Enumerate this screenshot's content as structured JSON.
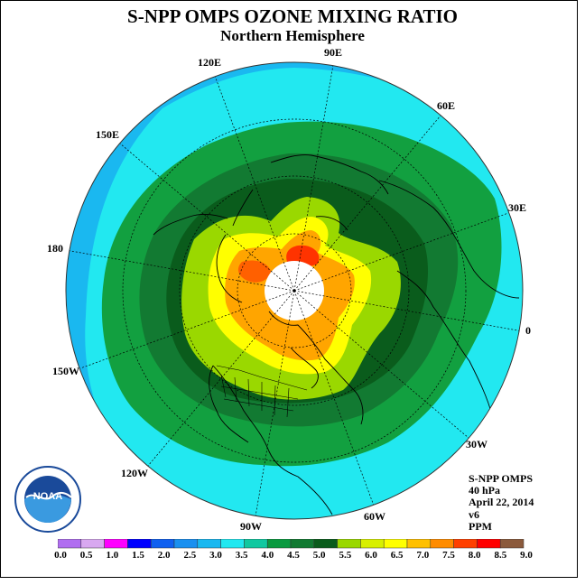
{
  "title": "S-NPP OMPS OZONE MIXING RATIO",
  "subtitle": "Northern Hemisphere",
  "longitude_labels": [
    "90E",
    "60E",
    "30E",
    "0",
    "30W",
    "60W",
    "90W",
    "120W",
    "150W",
    "180",
    "150E",
    "120E"
  ],
  "info": {
    "instrument": "S-NPP OMPS",
    "level": "40 hPa",
    "date": "April 22, 2014",
    "version": "v6",
    "units": "PPM"
  },
  "logo": {
    "text": "NOAA"
  },
  "colorbar": {
    "ticks": [
      "0.0",
      "0.5",
      "1.0",
      "1.5",
      "2.0",
      "2.5",
      "3.0",
      "3.5",
      "4.0",
      "4.5",
      "5.0",
      "5.5",
      "6.0",
      "6.5",
      "7.0",
      "7.5",
      "8.0",
      "8.5",
      "9.0"
    ],
    "colors": [
      "#b06ef0",
      "#d8a8f0",
      "#ff00ff",
      "#0000ff",
      "#1060f0",
      "#1a90f0",
      "#1ab8f0",
      "#22e8f0",
      "#11c8a0",
      "#0a9a40",
      "#127a32",
      "#0a5c1c",
      "#9ad800",
      "#d8f000",
      "#ffff00",
      "#ffc000",
      "#ff8c00",
      "#ff4000",
      "#ff0000",
      "#8b5a3c"
    ]
  },
  "colors": {
    "ring_outer": "#1ab8f0",
    "ring_cyan": "#22e8f0",
    "green_mid": "#127a32",
    "green_dark": "#0a5c1c",
    "lime": "#9ad800",
    "yellow": "#ffff00",
    "orange": "#ffa500",
    "red": "#ff2a00"
  }
}
